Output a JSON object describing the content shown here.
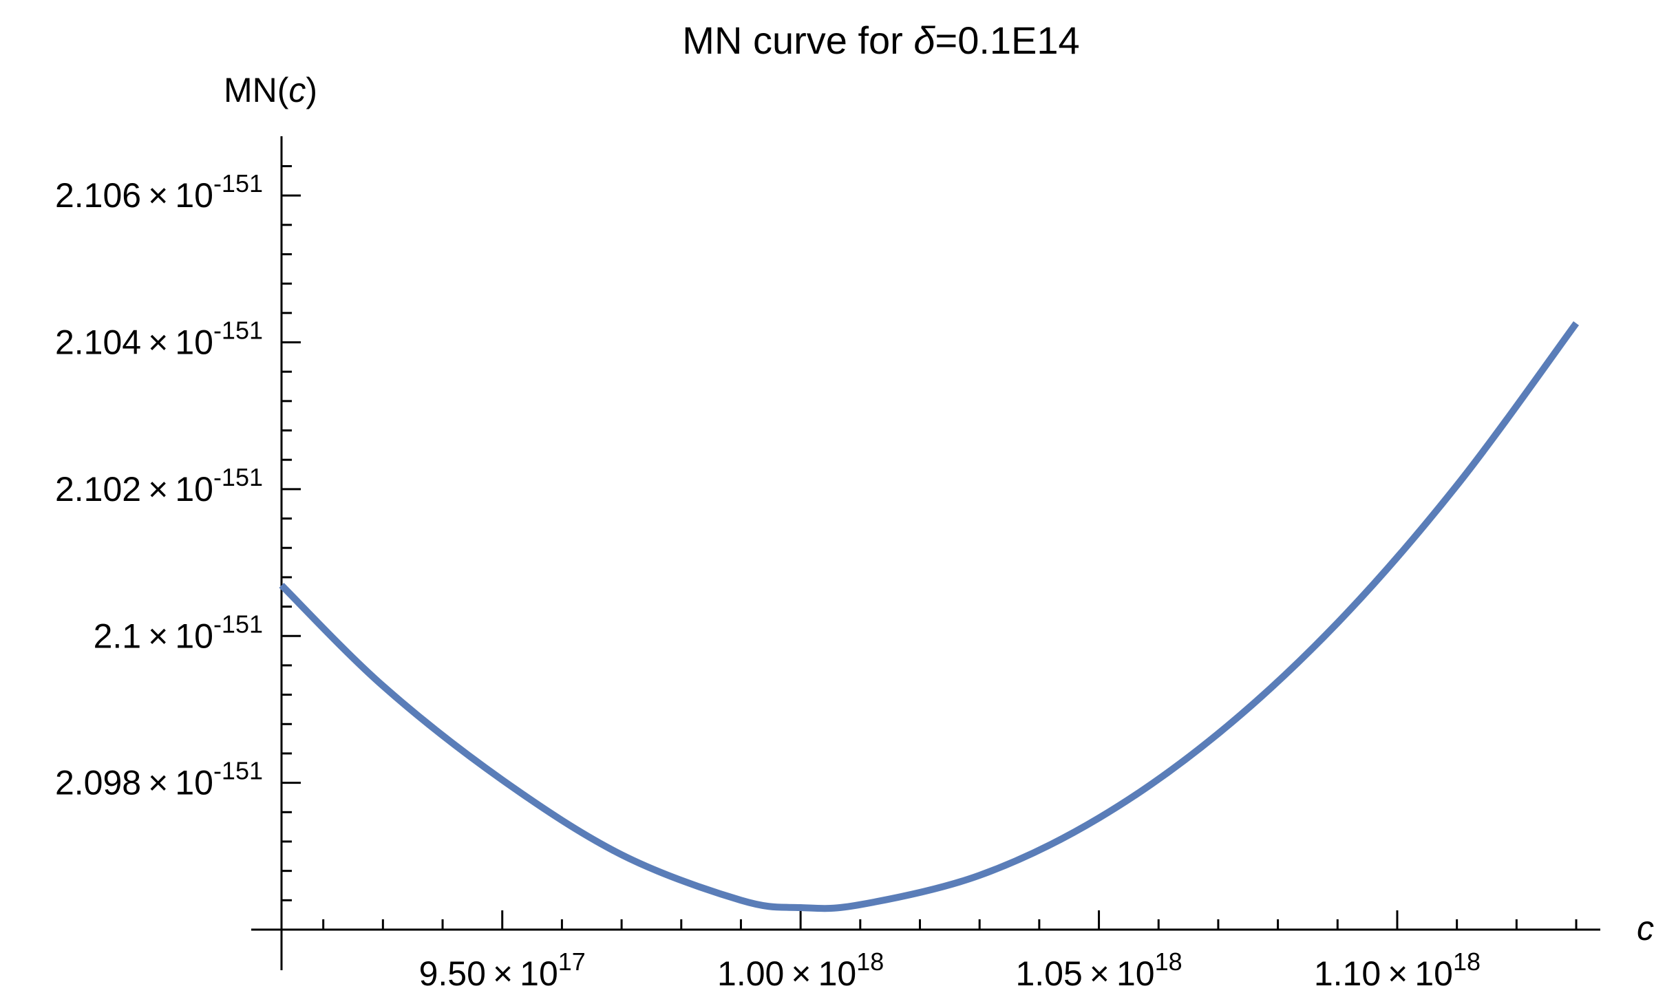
{
  "chart_data": {
    "type": "line",
    "title": {
      "prefix": "MN curve for ",
      "symbol": "δ",
      "suffix": "=0.1E14"
    },
    "ylabel": {
      "prefix": "MN(",
      "var": "c",
      "suffix": ")"
    },
    "xlabel": "c",
    "xlim": [
      9.13e+17,
      1.13e+18
    ],
    "ylim": [
      2.096e-151,
      2.1083e-151
    ],
    "x_ticks": [
      {
        "mantissa": "9.50",
        "exponent": "17",
        "value": 9.5e+17
      },
      {
        "mantissa": "1.00",
        "exponent": "18",
        "value": 1e+18
      },
      {
        "mantissa": "1.05",
        "exponent": "18",
        "value": 1.05e+18
      },
      {
        "mantissa": "1.10",
        "exponent": "18",
        "value": 1.1e+18
      }
    ],
    "y_ticks": [
      {
        "mantissa": "2.098",
        "exponent": "-151",
        "value": 2.098e-151
      },
      {
        "mantissa": "2.1",
        "exponent": "-151",
        "value": 2.1e-151
      },
      {
        "mantissa": "2.102",
        "exponent": "-151",
        "value": 2.102e-151
      },
      {
        "mantissa": "2.104",
        "exponent": "-151",
        "value": 2.104e-151
      },
      {
        "mantissa": "2.106",
        "exponent": "-151",
        "value": 2.106e-151
      }
    ],
    "times_symbol": "×",
    "base": "10",
    "series": [
      {
        "color": "#5a7db8",
        "x": [
          9.13e+17,
          9.3e+17,
          9.5e+17,
          9.7e+17,
          9.9e+17,
          1e+18,
          1.01e+18,
          1.03e+18,
          1.05e+18,
          1.07e+18,
          1.09e+18,
          1.11e+18,
          1.13e+18
        ],
        "y": [
          2.10069e-151,
          2.09932e-151,
          2.09804e-151,
          2.09702e-151,
          2.0964e-151,
          2.0963e-151,
          2.09634e-151,
          2.09674e-151,
          2.09752e-151,
          2.09867e-151,
          2.10018e-151,
          2.10205e-151,
          2.10426e-151
        ]
      }
    ],
    "grid": false,
    "legend": "none"
  }
}
